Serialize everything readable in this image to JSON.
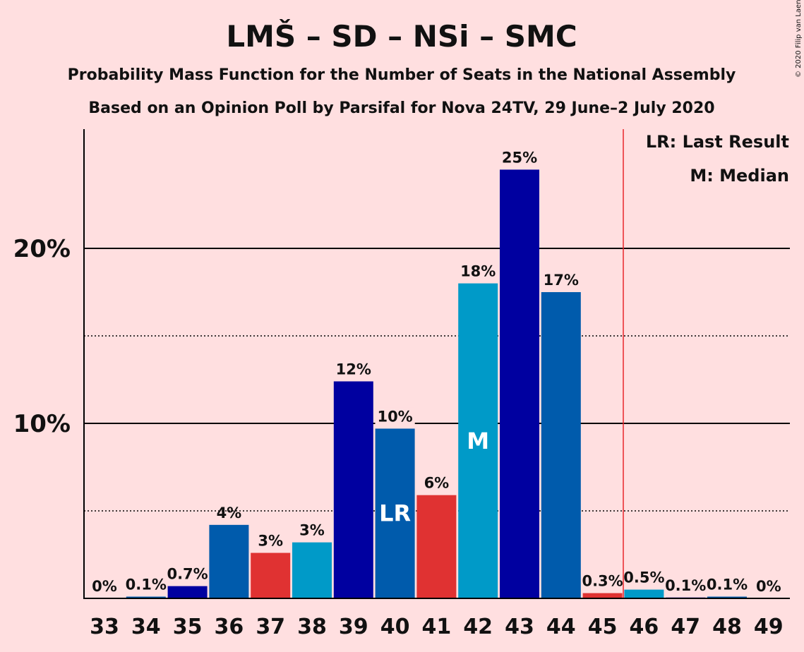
{
  "chart_data": {
    "type": "bar",
    "title": "LMŠ – SD – NSi – SMC",
    "subtitle": "Probability Mass Function for the Number of Seats in the National Assembly",
    "subtitle2": "Based on an Opinion Poll by Parsifal for Nova 24TV, 29 June–2 July 2020",
    "copyright": "© 2020 Filip van Laenen",
    "legend": {
      "last_result": "LR: Last Result",
      "median": "M: Median",
      "placement": "top-right"
    },
    "ylim": [
      0,
      26.8
    ],
    "yticks": [
      {
        "value": 10,
        "label": "10%"
      },
      {
        "value": 20,
        "label": "20%"
      }
    ],
    "minor_gridlines": [
      5,
      15
    ],
    "grid": true,
    "majority_line_after": "45",
    "categories": [
      "33",
      "34",
      "35",
      "36",
      "37",
      "38",
      "39",
      "40",
      "41",
      "42",
      "43",
      "44",
      "45",
      "46",
      "47",
      "48",
      "49"
    ],
    "values": [
      0,
      0.1,
      0.7,
      4.2,
      2.6,
      3.2,
      12.4,
      9.7,
      5.9,
      18.0,
      24.5,
      17.5,
      0.3,
      0.5,
      0.05,
      0.1,
      0
    ],
    "value_labels": [
      "0%",
      "0.1%",
      "0.7%",
      "4%",
      "3%",
      "3%",
      "12%",
      "10%",
      "6%",
      "18%",
      "25%",
      "17%",
      "0.3%",
      "0.5%",
      "0.1%",
      "0.1%",
      "0%"
    ],
    "bar_colors": [
      "#0000a0",
      "#005bac",
      "#0000a0",
      "#005bac",
      "#e03232",
      "#009ac8",
      "#0000a0",
      "#005bac",
      "#e03232",
      "#009ac8",
      "#0000a0",
      "#005bac",
      "#e03232",
      "#009ac8",
      "#0000a0",
      "#005bac",
      "#0000a0"
    ],
    "last_result": {
      "category": "40",
      "label": "LR"
    },
    "median": {
      "category": "42",
      "label": "M"
    },
    "colors": {
      "background": "#ffdfe0",
      "majority_line": "#e8262a",
      "axis": "#000000"
    }
  }
}
